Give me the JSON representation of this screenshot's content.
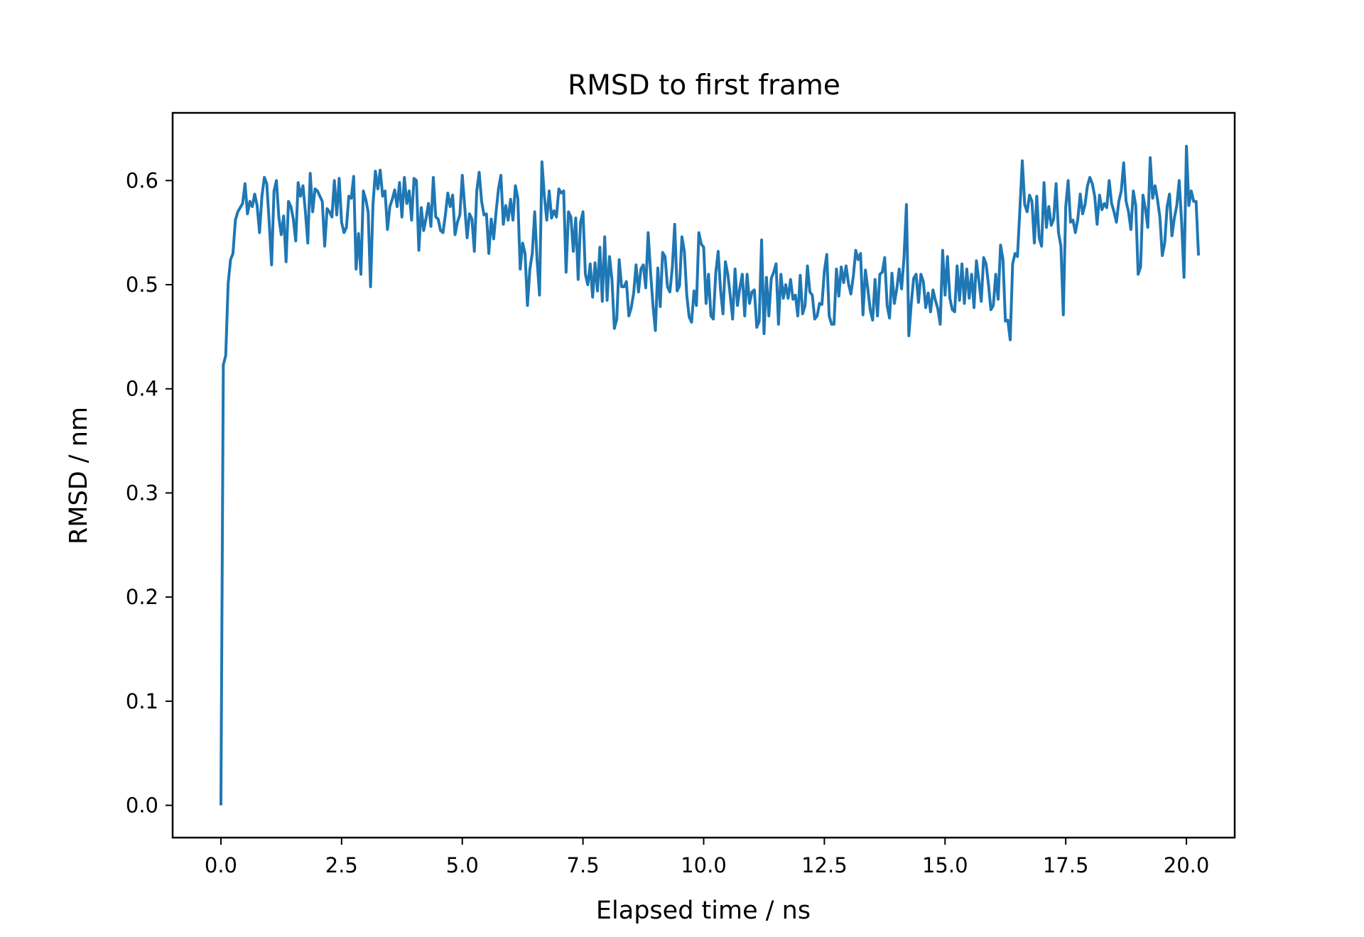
{
  "chart_data": {
    "type": "line",
    "title": "RMSD to first frame",
    "xlabel": "Elapsed time / ns",
    "ylabel": "RMSD / nm",
    "xlim": [
      -1.0,
      21.0
    ],
    "ylim": [
      -0.031,
      0.665
    ],
    "x_ticks": [
      0.0,
      2.5,
      5.0,
      7.5,
      10.0,
      12.5,
      15.0,
      17.5,
      20.0
    ],
    "x_tick_labels": [
      "0.0",
      "2.5",
      "5.0",
      "7.5",
      "10.0",
      "12.5",
      "15.0",
      "17.5",
      "20.0"
    ],
    "y_ticks": [
      0.0,
      0.1,
      0.2,
      0.3,
      0.4,
      0.5,
      0.6
    ],
    "y_tick_labels": [
      "0.0",
      "0.1",
      "0.2",
      "0.3",
      "0.4",
      "0.5",
      "0.6"
    ],
    "grid": false,
    "legend": "none",
    "line_color": "#1f77b4",
    "x_step": 0.05,
    "series": [
      {
        "values": [
          0.0,
          0.423,
          0.432,
          0.501,
          0.524,
          0.53,
          0.562,
          0.57,
          0.574,
          0.578,
          0.597,
          0.568,
          0.58,
          0.575,
          0.587,
          0.576,
          0.55,
          0.585,
          0.603,
          0.597,
          0.56,
          0.519,
          0.59,
          0.6,
          0.565,
          0.548,
          0.566,
          0.522,
          0.58,
          0.575,
          0.563,
          0.542,
          0.598,
          0.585,
          0.595,
          0.57,
          0.54,
          0.607,
          0.57,
          0.592,
          0.59,
          0.585,
          0.58,
          0.537,
          0.573,
          0.57,
          0.565,
          0.6,
          0.567,
          0.602,
          0.56,
          0.55,
          0.555,
          0.585,
          0.583,
          0.604,
          0.515,
          0.549,
          0.51,
          0.59,
          0.582,
          0.57,
          0.498,
          0.577,
          0.609,
          0.592,
          0.61,
          0.585,
          0.59,
          0.553,
          0.575,
          0.582,
          0.591,
          0.575,
          0.598,
          0.565,
          0.603,
          0.578,
          0.59,
          0.562,
          0.602,
          0.6,
          0.533,
          0.574,
          0.552,
          0.564,
          0.578,
          0.556,
          0.603,
          0.565,
          0.563,
          0.552,
          0.55,
          0.567,
          0.588,
          0.575,
          0.586,
          0.548,
          0.56,
          0.567,
          0.605,
          0.575,
          0.545,
          0.568,
          0.563,
          0.532,
          0.59,
          0.608,
          0.58,
          0.567,
          0.568,
          0.53,
          0.563,
          0.544,
          0.57,
          0.592,
          0.605,
          0.558,
          0.576,
          0.562,
          0.582,
          0.562,
          0.595,
          0.583,
          0.515,
          0.54,
          0.53,
          0.48,
          0.515,
          0.53,
          0.57,
          0.523,
          0.49,
          0.618,
          0.585,
          0.562,
          0.59,
          0.564,
          0.571,
          0.565,
          0.592,
          0.588,
          0.59,
          0.512,
          0.57,
          0.565,
          0.532,
          0.564,
          0.505,
          0.56,
          0.57,
          0.51,
          0.5,
          0.52,
          0.488,
          0.521,
          0.494,
          0.536,
          0.484,
          0.546,
          0.485,
          0.527,
          0.505,
          0.458,
          0.467,
          0.524,
          0.498,
          0.498,
          0.503,
          0.47,
          0.478,
          0.492,
          0.519,
          0.493,
          0.515,
          0.519,
          0.497,
          0.55,
          0.512,
          0.48,
          0.456,
          0.516,
          0.479,
          0.531,
          0.527,
          0.498,
          0.493,
          0.516,
          0.558,
          0.494,
          0.499,
          0.546,
          0.532,
          0.49,
          0.469,
          0.464,
          0.494,
          0.48,
          0.55,
          0.539,
          0.536,
          0.482,
          0.51,
          0.47,
          0.467,
          0.511,
          0.532,
          0.495,
          0.472,
          0.522,
          0.51,
          0.49,
          0.467,
          0.515,
          0.48,
          0.497,
          0.51,
          0.47,
          0.51,
          0.482,
          0.493,
          0.495,
          0.459,
          0.465,
          0.543,
          0.453,
          0.507,
          0.47,
          0.506,
          0.512,
          0.52,
          0.462,
          0.51,
          0.487,
          0.5,
          0.487,
          0.505,
          0.486,
          0.49,
          0.47,
          0.509,
          0.472,
          0.48,
          0.518,
          0.493,
          0.49,
          0.467,
          0.47,
          0.482,
          0.481,
          0.513,
          0.529,
          0.47,
          0.462,
          0.462,
          0.515,
          0.489,
          0.517,
          0.502,
          0.518,
          0.501,
          0.491,
          0.508,
          0.533,
          0.524,
          0.53,
          0.471,
          0.514,
          0.496,
          0.476,
          0.466,
          0.505,
          0.47,
          0.51,
          0.512,
          0.526,
          0.48,
          0.468,
          0.511,
          0.482,
          0.496,
          0.515,
          0.496,
          0.526,
          0.577,
          0.451,
          0.482,
          0.506,
          0.51,
          0.483,
          0.51,
          0.503,
          0.478,
          0.492,
          0.474,
          0.495,
          0.485,
          0.477,
          0.462,
          0.533,
          0.49,
          0.527,
          0.487,
          0.476,
          0.474,
          0.518,
          0.485,
          0.52,
          0.482,
          0.515,
          0.487,
          0.51,
          0.478,
          0.523,
          0.504,
          0.484,
          0.526,
          0.52,
          0.5,
          0.476,
          0.48,
          0.51,
          0.486,
          0.538,
          0.524,
          0.465,
          0.466,
          0.447,
          0.52,
          0.53,
          0.527,
          0.572,
          0.619,
          0.577,
          0.57,
          0.586,
          0.58,
          0.54,
          0.585,
          0.545,
          0.537,
          0.598,
          0.555,
          0.575,
          0.557,
          0.563,
          0.597,
          0.55,
          0.537,
          0.471,
          0.575,
          0.6,
          0.56,
          0.562,
          0.55,
          0.563,
          0.587,
          0.568,
          0.577,
          0.595,
          0.603,
          0.597,
          0.585,
          0.558,
          0.586,
          0.572,
          0.578,
          0.574,
          0.6,
          0.578,
          0.57,
          0.56,
          0.58,
          0.59,
          0.617,
          0.58,
          0.57,
          0.553,
          0.59,
          0.576,
          0.51,
          0.517,
          0.586,
          0.573,
          0.555,
          0.622,
          0.583,
          0.595,
          0.582,
          0.565,
          0.528,
          0.54,
          0.575,
          0.587,
          0.547,
          0.564,
          0.576,
          0.6,
          0.56,
          0.507,
          0.633,
          0.576,
          0.59,
          0.58,
          0.58,
          0.528
        ]
      }
    ]
  }
}
